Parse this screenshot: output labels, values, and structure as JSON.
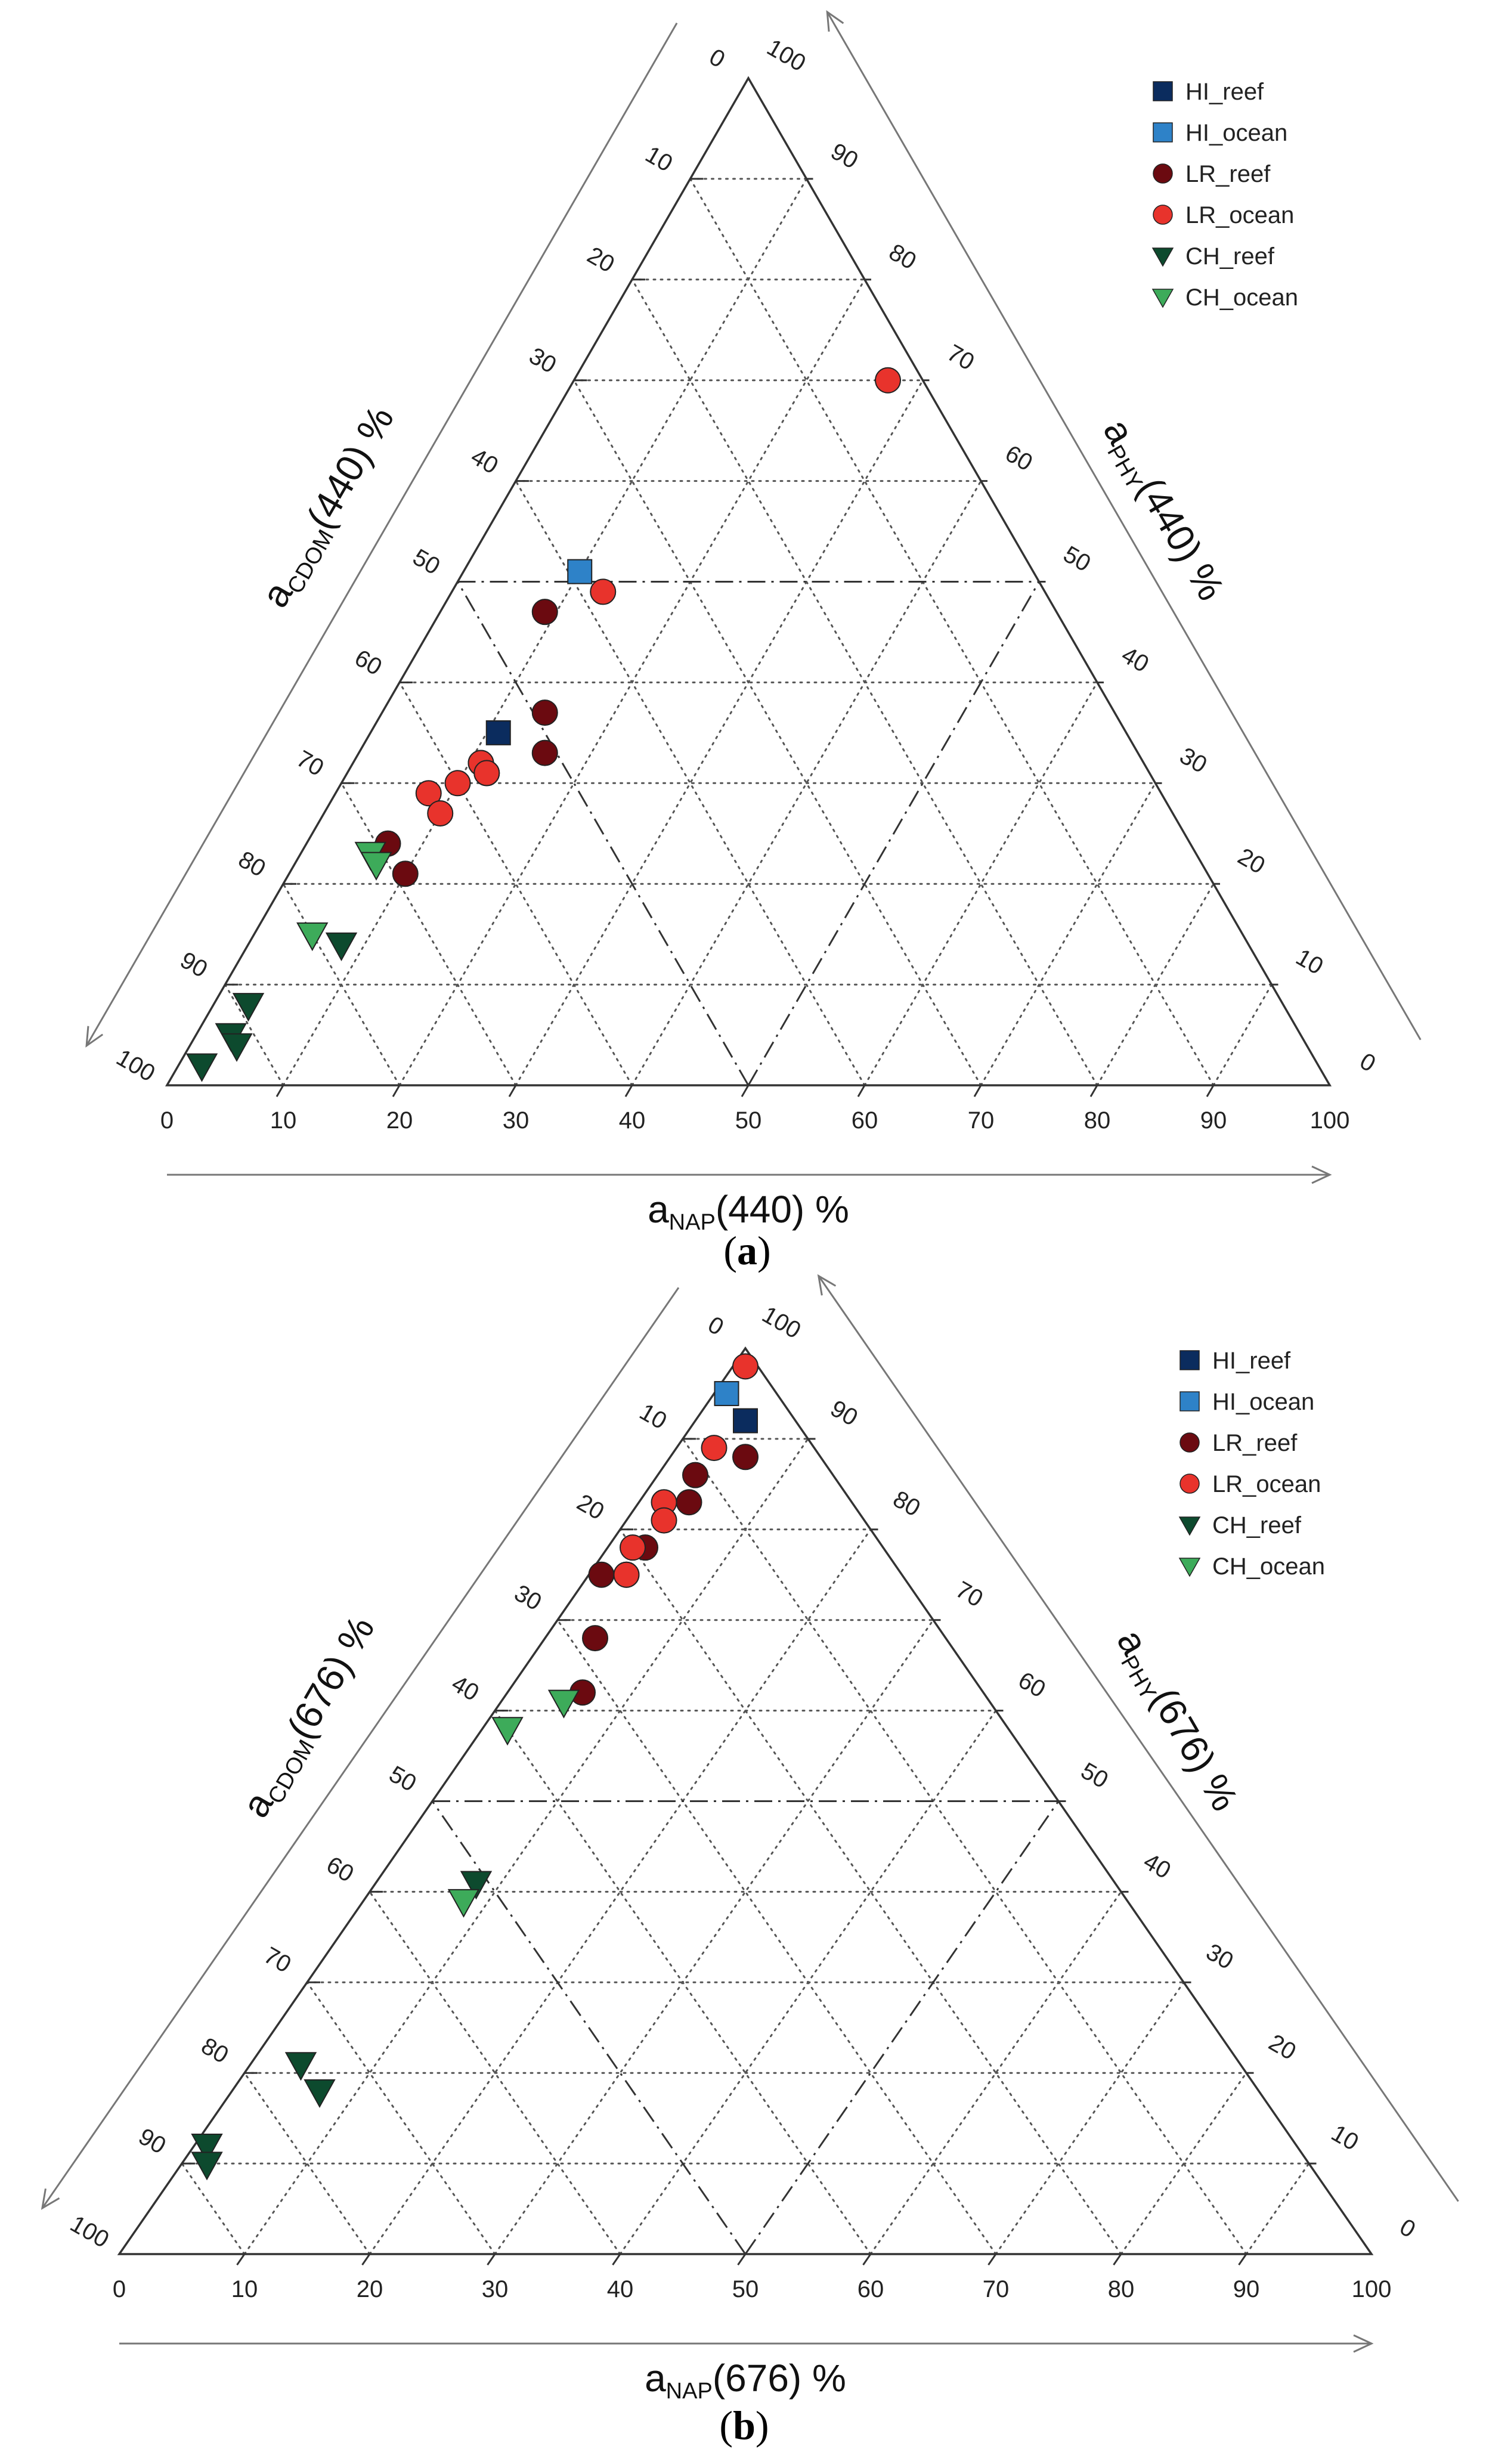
{
  "chart_data": [
    {
      "type": "scatter",
      "subtype": "ternary",
      "panel_label": "a",
      "axes": {
        "bottom": {
          "prefix": "a",
          "sub": "NAP",
          "wl": "(440) %"
        },
        "left": {
          "prefix": "a",
          "sub": "CDOM",
          "wl": "(440) %"
        },
        "right": {
          "prefix": "a",
          "sub": "PHY",
          "wl": "(440) %"
        }
      },
      "ticks": [
        0,
        10,
        20,
        30,
        40,
        50,
        60,
        70,
        80,
        90,
        100
      ],
      "legend": [
        "HI_reef",
        "HI_ocean",
        "LR_reef",
        "LR_ocean",
        "CH_reef",
        "CH_ocean"
      ],
      "series": [
        {
          "name": "HI_reef",
          "marker": "square",
          "color": "#0b2c5e",
          "points": [
            {
              "nap": 11,
              "phy": 35
            }
          ]
        },
        {
          "name": "HI_ocean",
          "marker": "square",
          "color": "#2e82c8",
          "points": [
            {
              "nap": 10,
              "phy": 51
            }
          ]
        },
        {
          "name": "LR_reef",
          "marker": "circle",
          "color": "#6b0a10",
          "points": [
            {
              "nap": 14,
              "phy": 37
            },
            {
              "nap": 16,
              "phy": 33
            },
            {
              "nap": 9,
              "phy": 47
            },
            {
              "nap": 12,
              "phy": 31
            },
            {
              "nap": 7,
              "phy": 24
            },
            {
              "nap": 10,
              "phy": 21
            },
            {
              "nap": 11,
              "phy": 32
            }
          ]
        },
        {
          "name": "LR_ocean",
          "marker": "circle",
          "color": "#e8332c",
          "points": [
            {
              "nap": 27,
              "phy": 70
            },
            {
              "nap": 13,
              "phy": 49
            },
            {
              "nap": 11,
              "phy": 32
            },
            {
              "nap": 10,
              "phy": 30
            },
            {
              "nap": 12,
              "phy": 31
            },
            {
              "nap": 8,
              "phy": 29
            },
            {
              "nap": 10,
              "phy": 27
            }
          ]
        },
        {
          "name": "CH_reef",
          "marker": "triangle-down",
          "color": "#0d4a2e",
          "points": [
            {
              "nap": 8,
              "phy": 14
            },
            {
              "nap": 3,
              "phy": 8
            },
            {
              "nap": 3,
              "phy": 5
            },
            {
              "nap": 4,
              "phy": 4
            },
            {
              "nap": 2,
              "phy": 2
            }
          ]
        },
        {
          "name": "CH_ocean",
          "marker": "triangle-down",
          "color": "#3dab5a",
          "points": [
            {
              "nap": 6,
              "phy": 23
            },
            {
              "nap": 7,
              "phy": 22
            },
            {
              "nap": 5,
              "phy": 15
            }
          ]
        }
      ]
    },
    {
      "type": "scatter",
      "subtype": "ternary",
      "panel_label": "b",
      "axes": {
        "bottom": {
          "prefix": "a",
          "sub": "NAP",
          "wl": "(676) %"
        },
        "left": {
          "prefix": "a",
          "sub": "CDOM",
          "wl": "(676) %"
        },
        "right": {
          "prefix": "a",
          "sub": "PHY",
          "wl": "(676) %"
        }
      },
      "ticks": [
        0,
        10,
        20,
        30,
        40,
        50,
        60,
        70,
        80,
        90,
        100
      ],
      "legend": [
        "HI_reef",
        "HI_ocean",
        "LR_reef",
        "LR_ocean",
        "CH_reef",
        "CH_ocean"
      ],
      "series": [
        {
          "name": "HI_reef",
          "marker": "square",
          "color": "#0b2c5e",
          "points": [
            {
              "nap": 4,
              "phy": 92
            }
          ]
        },
        {
          "name": "HI_ocean",
          "marker": "square",
          "color": "#2e82c8",
          "points": [
            {
              "nap": 1,
              "phy": 95
            }
          ]
        },
        {
          "name": "LR_reef",
          "marker": "circle",
          "color": "#6b0a10",
          "points": [
            {
              "nap": 4,
              "phy": 83
            },
            {
              "nap": 6,
              "phy": 88
            },
            {
              "nap": 3,
              "phy": 86
            },
            {
              "nap": 3,
              "phy": 78
            },
            {
              "nap": 1,
              "phy": 75
            },
            {
              "nap": 4,
              "phy": 68
            },
            {
              "nap": 6,
              "phy": 62
            }
          ]
        },
        {
          "name": "LR_ocean",
          "marker": "circle",
          "color": "#e8332c",
          "points": [
            {
              "nap": 1,
              "phy": 98
            },
            {
              "nap": 3,
              "phy": 89
            },
            {
              "nap": 2,
              "phy": 83
            },
            {
              "nap": 3,
              "phy": 81
            },
            {
              "nap": 2,
              "phy": 78
            },
            {
              "nap": 3,
              "phy": 75
            },
            {
              "nap": 3,
              "phy": 75
            }
          ]
        },
        {
          "name": "CH_reef",
          "marker": "triangle-down",
          "color": "#0d4a2e",
          "points": [
            {
              "nap": 8,
              "phy": 41
            },
            {
              "nap": 7,
              "phy": 18
            },
            {
              "nap": 4,
              "phy": 21
            },
            {
              "nap": 1,
              "phy": 12
            },
            {
              "nap": 2,
              "phy": 10
            }
          ]
        },
        {
          "name": "CH_ocean",
          "marker": "triangle-down",
          "color": "#3dab5a",
          "points": [
            {
              "nap": 5,
              "phy": 61
            },
            {
              "nap": 8,
              "phy": 39
            },
            {
              "nap": 2,
              "phy": 58
            }
          ]
        }
      ]
    }
  ]
}
